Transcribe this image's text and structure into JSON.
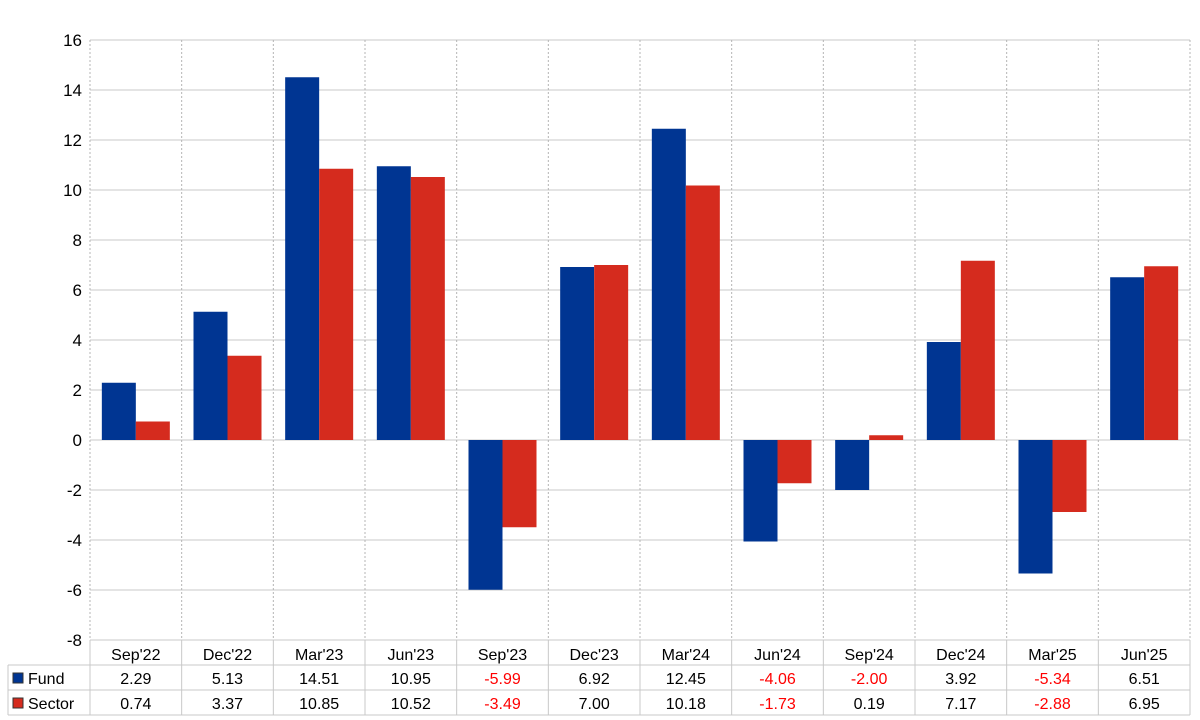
{
  "chart_data": {
    "type": "bar",
    "title": "",
    "xlabel": "",
    "ylabel": "",
    "ylim": [
      -8,
      16
    ],
    "yticks": [
      16,
      14,
      12,
      10,
      8,
      6,
      4,
      2,
      0,
      -2,
      -4,
      -6,
      -8
    ],
    "grid": true,
    "legend": "table-bottom-left",
    "categories": [
      "Sep'22",
      "Dec'22",
      "Mar'23",
      "Jun'23",
      "Sep'23",
      "Dec'23",
      "Mar'24",
      "Jun'24",
      "Sep'24",
      "Dec'24",
      "Mar'25",
      "Jun'25"
    ],
    "series": [
      {
        "name": "Fund",
        "color": "#003592",
        "values": [
          2.29,
          5.13,
          14.51,
          10.95,
          -5.99,
          6.92,
          12.45,
          -4.06,
          -2.0,
          3.92,
          -5.34,
          6.51
        ],
        "labels": [
          "2.29",
          "5.13",
          "14.51",
          "10.95",
          "-5.99",
          "6.92",
          "12.45",
          "-4.06",
          "-2.00",
          "3.92",
          "-5.34",
          "6.51"
        ]
      },
      {
        "name": "Sector",
        "color": "#d52b1e",
        "values": [
          0.74,
          3.37,
          10.85,
          10.52,
          -3.49,
          7.0,
          10.18,
          -1.73,
          0.19,
          7.17,
          -2.88,
          6.95
        ],
        "labels": [
          "0.74",
          "3.37",
          "10.85",
          "10.52",
          "-3.49",
          "7.00",
          "10.18",
          "-1.73",
          "0.19",
          "7.17",
          "-2.88",
          "6.95"
        ]
      }
    ],
    "negative_label_color": "#ff0000"
  }
}
